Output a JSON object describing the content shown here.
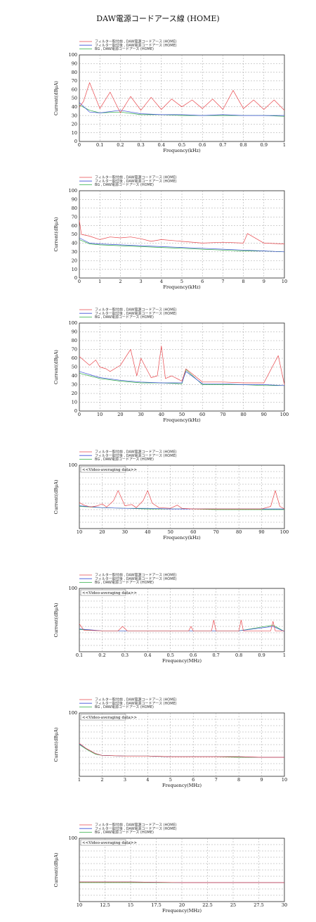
{
  "title": "DAW電源コードアース線 (HOME)",
  "legend": [
    "フィルター取付前 , DAW電源コードアース (HOME)",
    "フィルター取付後 , DAW電源コードアース (HOME)",
    "BG , DAW電源コードアース (HOME)"
  ],
  "colors": {
    "before": "#e8474c",
    "after": "#3d50d8",
    "bg": "#2fae45"
  },
  "chart_data": [
    {
      "type": "line",
      "xlabel": "Frequency(kHz)",
      "ylabel": "Current(dBμA)",
      "xlim": [
        0,
        1
      ],
      "ylim": [
        0,
        100
      ],
      "xticks": [
        "0",
        "0.1",
        "0.2",
        "0.3",
        "0.4",
        "0.5",
        "0.6",
        "0.7",
        "0.8",
        "0.9",
        "1"
      ],
      "yticks": [
        "0",
        "10",
        "20",
        "30",
        "40",
        "50",
        "60",
        "70",
        "80",
        "90",
        "100"
      ],
      "grid": true,
      "note": "",
      "series": [
        {
          "name": "フィルター取付前 , DAW電源コードアース (HOME)",
          "x": [
            0,
            0.02,
            0.05,
            0.1,
            0.15,
            0.2,
            0.25,
            0.3,
            0.35,
            0.4,
            0.45,
            0.5,
            0.55,
            0.6,
            0.65,
            0.7,
            0.75,
            0.8,
            0.85,
            0.9,
            0.95,
            1
          ],
          "y": [
            40,
            46,
            68,
            38,
            57,
            33,
            52,
            36,
            51,
            37,
            49,
            40,
            48,
            38,
            49,
            37,
            59,
            38,
            48,
            37,
            48,
            36
          ]
        },
        {
          "name": "フィルター取付後 , DAW電源コードアース (HOME)",
          "x": [
            0,
            0.05,
            0.1,
            0.2,
            0.3,
            0.4,
            0.5,
            0.6,
            0.7,
            0.8,
            0.9,
            1
          ],
          "y": [
            45,
            34,
            33,
            36,
            32,
            31,
            31,
            30,
            31,
            30,
            30,
            30
          ]
        },
        {
          "name": "BG , DAW電源コードアース (HOME)",
          "x": [
            0,
            0.05,
            0.1,
            0.2,
            0.3,
            0.4,
            0.5,
            0.6,
            0.7,
            0.8,
            0.9,
            1
          ],
          "y": [
            42,
            36,
            33,
            34,
            31,
            31,
            30,
            30,
            30,
            30,
            30,
            29
          ]
        }
      ]
    },
    {
      "type": "line",
      "xlabel": "Frequency(kHz)",
      "ylabel": "Current(dBμA)",
      "xlim": [
        0,
        10
      ],
      "ylim": [
        0,
        100
      ],
      "xticks": [
        "0",
        "1",
        "2",
        "3",
        "4",
        "5",
        "6",
        "7",
        "8",
        "9",
        "10"
      ],
      "yticks": [
        "0",
        "10",
        "20",
        "30",
        "40",
        "50",
        "60",
        "70",
        "80",
        "90",
        "100"
      ],
      "grid": true,
      "note": "",
      "series": [
        {
          "name": "フィルター取付前 , DAW電源コードアース (HOME)",
          "x": [
            0,
            0.1,
            0.5,
            1,
            1.5,
            2,
            2.5,
            3,
            3.5,
            4,
            5,
            6,
            7,
            8,
            8.2,
            9,
            10
          ],
          "y": [
            66,
            50,
            48,
            44,
            47,
            46,
            47,
            45,
            42,
            44,
            42,
            40,
            41,
            40,
            51,
            40,
            39
          ]
        },
        {
          "name": "フィルター取付後 , DAW電源コードアース (HOME)",
          "x": [
            0,
            0.5,
            1,
            2,
            3,
            4,
            5,
            6,
            7,
            8,
            9,
            10
          ],
          "y": [
            46,
            40,
            39,
            38,
            37,
            36,
            35,
            34,
            33,
            32,
            31,
            30
          ]
        },
        {
          "name": "BG , DAW電源コードアース (HOME)",
          "x": [
            0,
            0.5,
            1,
            2,
            3,
            4,
            5,
            6,
            7,
            8,
            9,
            10
          ],
          "y": [
            44,
            39,
            38,
            37,
            36,
            35,
            34,
            33,
            32,
            31,
            31,
            30
          ]
        }
      ]
    },
    {
      "type": "line",
      "xlabel": "Frequency(kHz)",
      "ylabel": "Current(dBμA)",
      "xlim": [
        0,
        100
      ],
      "ylim": [
        0,
        100
      ],
      "xticks": [
        "0",
        "10",
        "20",
        "30",
        "40",
        "50",
        "60",
        "70",
        "80",
        "90",
        "100"
      ],
      "yticks": [
        "0",
        "10",
        "20",
        "30",
        "40",
        "50",
        "60",
        "70",
        "80",
        "90",
        "100"
      ],
      "grid": true,
      "note": "",
      "series": [
        {
          "name": "フィルター取付前 , DAW電源コードアース (HOME)",
          "x": [
            0,
            5,
            8,
            10,
            13,
            15,
            20,
            25,
            28,
            30,
            35,
            38,
            40,
            42,
            45,
            50,
            52,
            60,
            70,
            80,
            90,
            97,
            100
          ],
          "y": [
            62,
            52,
            58,
            50,
            48,
            45,
            52,
            70,
            40,
            60,
            38,
            40,
            74,
            37,
            40,
            34,
            48,
            33,
            33,
            32,
            32,
            63,
            30
          ]
        },
        {
          "name": "フィルター取付後 , DAW電源コードアース (HOME)",
          "x": [
            0,
            10,
            20,
            30,
            40,
            50,
            52,
            60,
            70,
            80,
            90,
            100
          ],
          "y": [
            45,
            38,
            35,
            33,
            32,
            32,
            45,
            31,
            31,
            30,
            30,
            29
          ]
        },
        {
          "name": "BG , DAW電源コードアース (HOME)",
          "x": [
            0,
            10,
            20,
            30,
            40,
            50,
            52,
            60,
            70,
            80,
            90,
            100
          ],
          "y": [
            43,
            37,
            34,
            32,
            32,
            31,
            47,
            30,
            30,
            30,
            29,
            29
          ]
        }
      ]
    },
    {
      "type": "line",
      "xlabel": "Frequency(kHz)",
      "ylabel": "Current(dBμA)",
      "xlim": [
        10,
        100
      ],
      "ylim": [
        0,
        100
      ],
      "xticks": [
        "10",
        "20",
        "30",
        "40",
        "50",
        "60",
        "70",
        "80",
        "90",
        "100"
      ],
      "yticks": [
        "",
        "100"
      ],
      "grid": true,
      "note": "<<Video-averaging data>>",
      "series": [
        {
          "name": "フィルター取付前 , DAW電源コードアース (HOME)",
          "x": [
            10,
            12,
            15,
            18,
            20,
            22,
            25,
            27,
            30,
            33,
            35,
            38,
            40,
            42,
            45,
            50,
            53,
            55,
            60,
            70,
            80,
            90,
            94,
            96,
            98,
            100
          ],
          "y": [
            41,
            37,
            34,
            36,
            39,
            34,
            44,
            60,
            36,
            38,
            33,
            44,
            60,
            40,
            33,
            32,
            37,
            32,
            31,
            31,
            31,
            31,
            35,
            60,
            35,
            31
          ]
        },
        {
          "name": "フィルター取付後 , DAW電源コードアース (HOME)",
          "x": [
            10,
            20,
            30,
            40,
            50,
            60,
            70,
            80,
            90,
            100
          ],
          "y": [
            36,
            33,
            32,
            32,
            31,
            31,
            31,
            31,
            31,
            31
          ]
        },
        {
          "name": "BG , DAW電源コードアース (HOME)",
          "x": [
            10,
            20,
            30,
            40,
            50,
            60,
            70,
            80,
            90,
            100
          ],
          "y": [
            35,
            33,
            32,
            31,
            31,
            31,
            30,
            30,
            30,
            30
          ]
        }
      ]
    },
    {
      "type": "line",
      "xlabel": "Frequency(MHz)",
      "ylabel": "Current(dBμA)",
      "xlim": [
        0.1,
        1
      ],
      "ylim": [
        0,
        100
      ],
      "xticks": [
        "0.1",
        "0.2",
        "0.3",
        "0.4",
        "0.5",
        "0.6",
        "0.7",
        "0.8",
        "0.9",
        "1"
      ],
      "yticks": [
        "",
        "100"
      ],
      "grid": true,
      "note": "<<Video-averaging data>>",
      "series": [
        {
          "name": "フィルター取付前 , DAW電源コードアース (HOME)",
          "x": [
            0.1,
            0.12,
            0.2,
            0.27,
            0.29,
            0.31,
            0.4,
            0.58,
            0.59,
            0.6,
            0.68,
            0.69,
            0.7,
            0.8,
            0.81,
            0.82,
            0.94,
            0.95,
            0.96,
            1
          ],
          "y": [
            44,
            34,
            33,
            33,
            40,
            33,
            33,
            33,
            40,
            33,
            33,
            50,
            33,
            33,
            50,
            33,
            33,
            48,
            33,
            33
          ]
        },
        {
          "name": "フィルター取付後 , DAW電源コードアース (HOME)",
          "x": [
            0.1,
            0.2,
            0.4,
            0.6,
            0.8,
            0.95,
            1
          ],
          "y": [
            36,
            33,
            33,
            33,
            33,
            40,
            32
          ]
        },
        {
          "name": "BG , DAW電源コードアース (HOME)",
          "x": [
            0.1,
            0.2,
            0.4,
            0.6,
            0.8,
            0.95,
            1
          ],
          "y": [
            35,
            33,
            33,
            33,
            33,
            42,
            32
          ]
        }
      ]
    },
    {
      "type": "line",
      "xlabel": "Frequency(MHz)",
      "ylabel": "Current(dBμA)",
      "xlim": [
        1,
        10
      ],
      "ylim": [
        0,
        100
      ],
      "xticks": [
        "1",
        "2",
        "3",
        "4",
        "5",
        "6",
        "7",
        "8",
        "9",
        "10"
      ],
      "yticks": [
        "",
        "100"
      ],
      "grid": true,
      "note": "<<Video-averaging data>>",
      "series": [
        {
          "name": "フィルター取付前 , DAW電源コードアース (HOME)",
          "x": [
            1,
            1.3,
            1.7,
            2,
            3,
            4,
            5,
            6,
            7,
            8,
            9,
            10
          ],
          "y": [
            52,
            44,
            36,
            33,
            32,
            32,
            31,
            31,
            31,
            31,
            30,
            30
          ]
        },
        {
          "name": "フィルター取付後 , DAW電源コードアース (HOME)",
          "x": [
            1,
            1.3,
            1.7,
            2,
            3,
            4,
            5,
            6,
            7,
            8,
            9,
            10
          ],
          "y": [
            51,
            44,
            36,
            33,
            32,
            32,
            31,
            31,
            31,
            31,
            30,
            30
          ]
        },
        {
          "name": "BG , DAW電源コードアース (HOME)",
          "x": [
            1,
            1.3,
            1.7,
            2,
            3,
            4,
            5,
            6,
            7,
            8,
            9,
            10
          ],
          "y": [
            50,
            43,
            35,
            33,
            32,
            32,
            31,
            31,
            31,
            30,
            30,
            30
          ]
        }
      ]
    },
    {
      "type": "line",
      "xlabel": "Frequency(MHz)",
      "ylabel": "Current(dBμA)",
      "xlim": [
        10,
        30
      ],
      "ylim": [
        0,
        100
      ],
      "xticks": [
        "10",
        "12.5",
        "15",
        "17.5",
        "20",
        "22.5",
        "25",
        "27.5",
        "30"
      ],
      "yticks": [
        "",
        "100"
      ],
      "grid": true,
      "note": "<<Video-averaging data>>",
      "series": [
        {
          "name": "フィルター取付前 , DAW電源コードアース (HOME)",
          "x": [
            10,
            15,
            20,
            25,
            30
          ],
          "y": [
            31,
            31,
            30,
            30,
            30
          ]
        },
        {
          "name": "フィルター取付後 , DAW電源コードアース (HOME)",
          "x": [
            10,
            15,
            20,
            25,
            30
          ],
          "y": [
            31,
            31,
            30,
            30,
            30
          ]
        },
        {
          "name": "BG , DAW電源コードアース (HOME)",
          "x": [
            10,
            15,
            20,
            25,
            30
          ],
          "y": [
            30,
            30,
            30,
            30,
            30
          ]
        }
      ]
    }
  ]
}
